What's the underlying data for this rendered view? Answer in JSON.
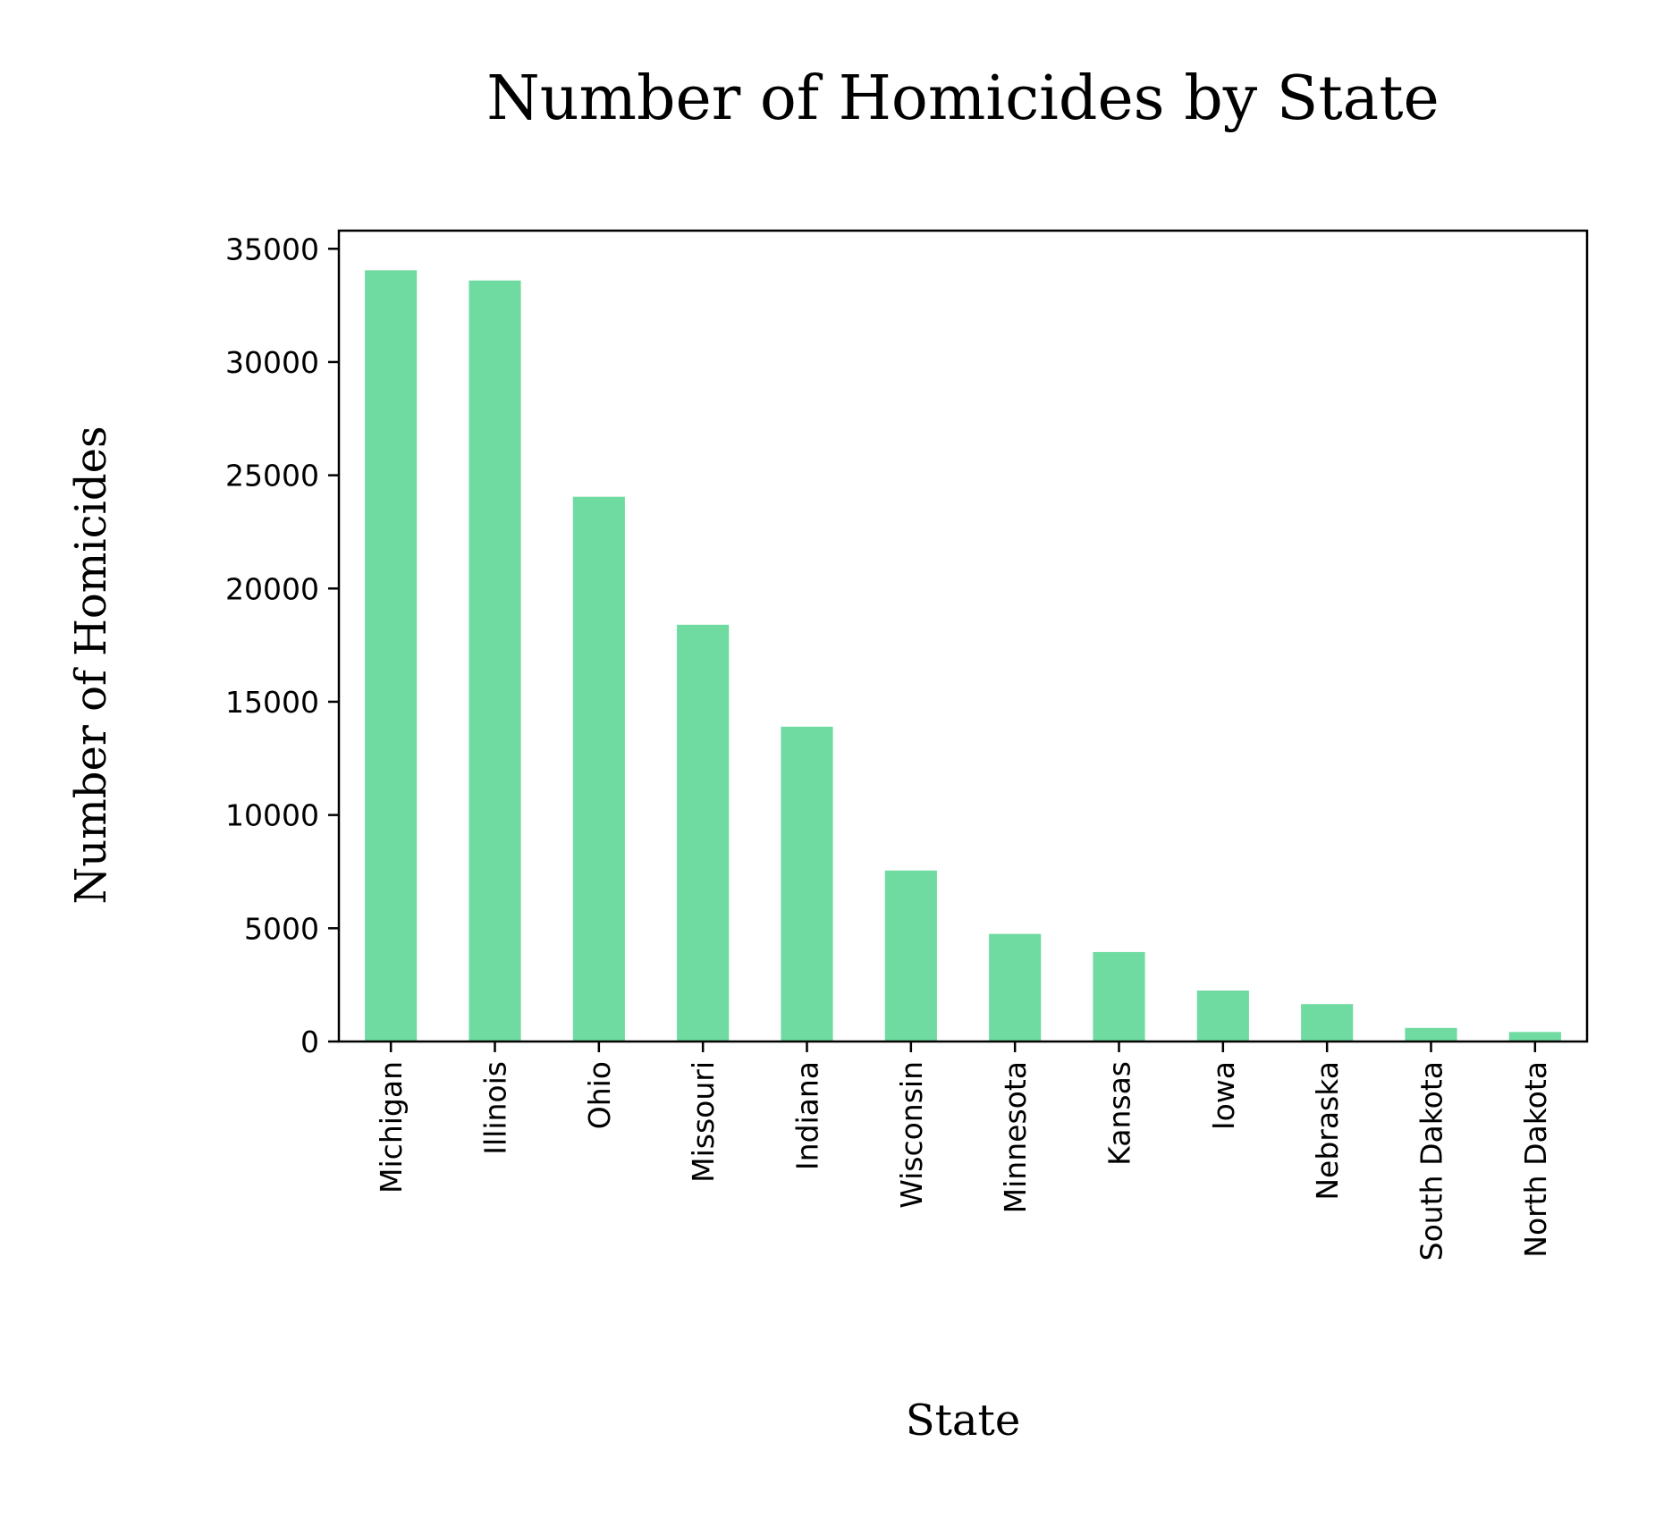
{
  "chart_data": {
    "type": "bar",
    "title": "Number of Homicides by State",
    "xlabel": "State",
    "ylabel": "Number of Homicides",
    "categories": [
      "Michigan",
      "Illinois",
      "Ohio",
      "Missouri",
      "Indiana",
      "Wisconsin",
      "Minnesota",
      "Kansas",
      "Iowa",
      "Nebraska",
      "South Dakota",
      "North Dakota"
    ],
    "values": [
      34050,
      33600,
      24050,
      18400,
      13900,
      7550,
      4750,
      3950,
      2250,
      1650,
      600,
      420
    ],
    "ylim": [
      0,
      35800
    ],
    "yticks": [
      0,
      5000,
      10000,
      15000,
      20000,
      25000,
      30000,
      35000
    ],
    "bar_color": "#6fdba1",
    "grid": false,
    "legend": "none"
  }
}
